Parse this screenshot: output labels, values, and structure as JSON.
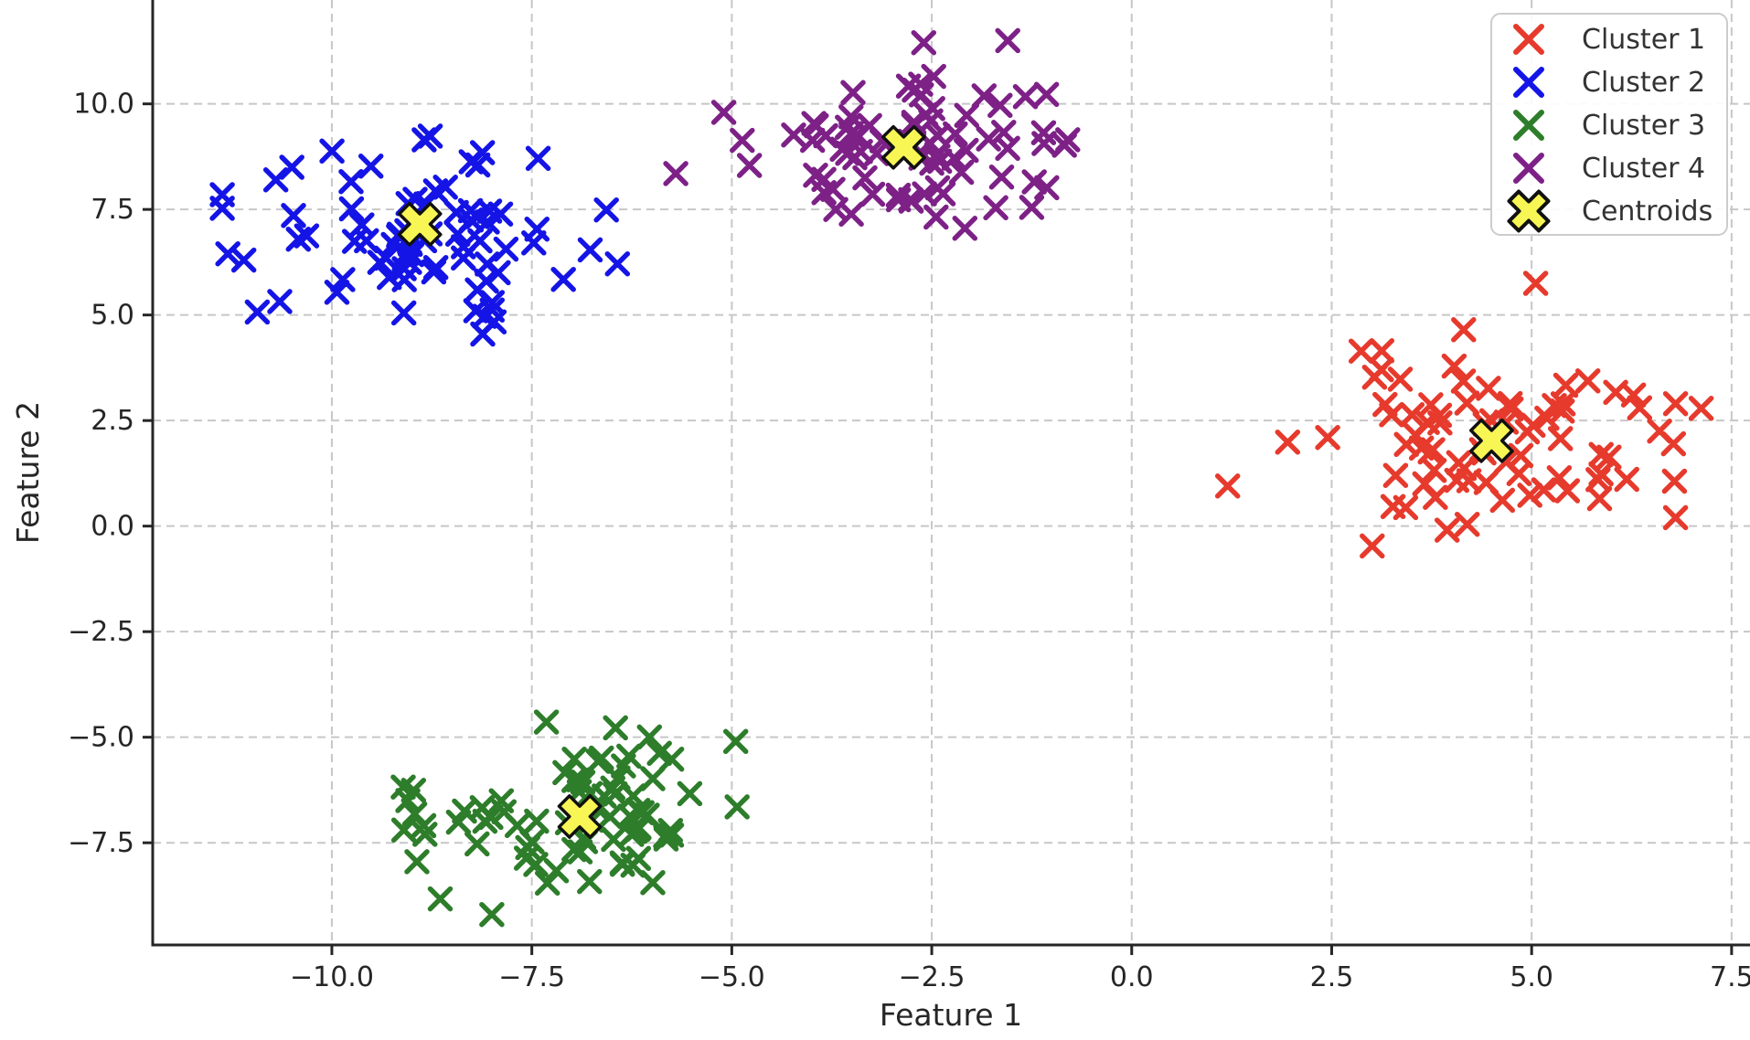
{
  "chart_data": {
    "type": "scatter",
    "title": "",
    "xlabel": "Feature 1",
    "ylabel": "Feature 2",
    "xlim": [
      -12.24,
      7.73
    ],
    "ylim": [
      -9.92,
      12.46
    ],
    "grid": true,
    "grid_style": "dashed",
    "x_ticks": [
      -10.0,
      -7.5,
      -5.0,
      -2.5,
      0.0,
      2.5,
      5.0,
      7.5
    ],
    "x_tick_labels": [
      "−10.0",
      "−7.5",
      "−5.0",
      "−2.5",
      "0.0",
      "2.5",
      "5.0",
      "7.5"
    ],
    "y_ticks": [
      10.0,
      7.5,
      5.0,
      2.5,
      0.0,
      -2.5,
      -5.0,
      -7.5
    ],
    "y_tick_labels": [
      "10.0",
      "7.5",
      "5.0",
      "2.5",
      "0.0",
      "−2.5",
      "−5.0",
      "−7.5"
    ],
    "series": [
      {
        "name": "Cluster 1",
        "color": "#e63a2d",
        "marker": "x",
        "center": [
          4.55,
          2.0
        ],
        "std": [
          1.1,
          0.95
        ],
        "n_random": 71,
        "seed": 11,
        "extra_points": [
          [
            1.2,
            0.95
          ],
          [
            2.45,
            2.1
          ],
          [
            4.15,
            4.65
          ],
          [
            5.05,
            5.75
          ],
          [
            5.85,
            0.65
          ],
          [
            6.8,
            0.2
          ],
          [
            6.35,
            2.8
          ],
          [
            6.8,
            2.9
          ],
          [
            6.6,
            2.25
          ]
        ]
      },
      {
        "name": "Cluster 2",
        "color": "#1414e6",
        "marker": "x",
        "center": [
          -8.9,
          7.15
        ],
        "std": [
          0.95,
          1.0
        ],
        "n_random": 72,
        "seed": 22,
        "extra_points": [
          [
            -11.3,
            6.45
          ],
          [
            -11.1,
            6.3
          ],
          [
            -10.7,
            8.2
          ],
          [
            -10.5,
            8.5
          ],
          [
            -9.1,
            5.05
          ],
          [
            -8.2,
            5.1
          ]
        ]
      },
      {
        "name": "Cluster 3",
        "color": "#2d7d2a",
        "marker": "x",
        "center": [
          -6.9,
          -6.85
        ],
        "std": [
          1.0,
          0.85
        ],
        "n_random": 74,
        "seed": 33,
        "extra_points": [
          [
            -4.95,
            -5.1
          ],
          [
            -8.0,
            -9.2
          ],
          [
            -9.1,
            -7.2
          ],
          [
            -9.05,
            -6.5
          ]
        ]
      },
      {
        "name": "Cluster 4",
        "color": "#7d2187",
        "marker": "x",
        "center": [
          -2.85,
          8.95
        ],
        "std": [
          1.05,
          0.92
        ],
        "n_random": 73,
        "seed": 44,
        "extra_points": [
          [
            -5.7,
            8.35
          ],
          [
            -5.1,
            9.8
          ],
          [
            -2.6,
            11.45
          ],
          [
            -1.55,
            11.5
          ],
          [
            -0.8,
            9.15
          ],
          [
            -3.7,
            7.5
          ],
          [
            -1.25,
            7.55
          ]
        ]
      }
    ],
    "centroids": {
      "name": "Centroids",
      "marker": "X",
      "fill": "#f8f655",
      "edge": "#111111",
      "points": [
        [
          -8.9,
          7.15
        ],
        [
          -2.85,
          8.97
        ],
        [
          -6.9,
          -6.88
        ],
        [
          4.5,
          2.02
        ]
      ]
    },
    "legend": {
      "position": "upper right",
      "entries": [
        {
          "label": "Cluster 1",
          "marker": "x",
          "color": "#e63a2d"
        },
        {
          "label": "Cluster 2",
          "marker": "x",
          "color": "#1414e6"
        },
        {
          "label": "Cluster 3",
          "marker": "x",
          "color": "#2d7d2a"
        },
        {
          "label": "Cluster 4",
          "marker": "x",
          "color": "#7d2187"
        },
        {
          "label": "Centroids",
          "marker": "X",
          "color": "#f8f655",
          "edge": "#111111"
        }
      ]
    }
  },
  "style": {
    "grid_color": "#c7c7c7",
    "spine_color": "#262626",
    "tick_color": "#262626",
    "text_color": "#262626",
    "legend_border": "#cccccc",
    "legend_bg": "#ffffff",
    "background": "#ffffff"
  }
}
